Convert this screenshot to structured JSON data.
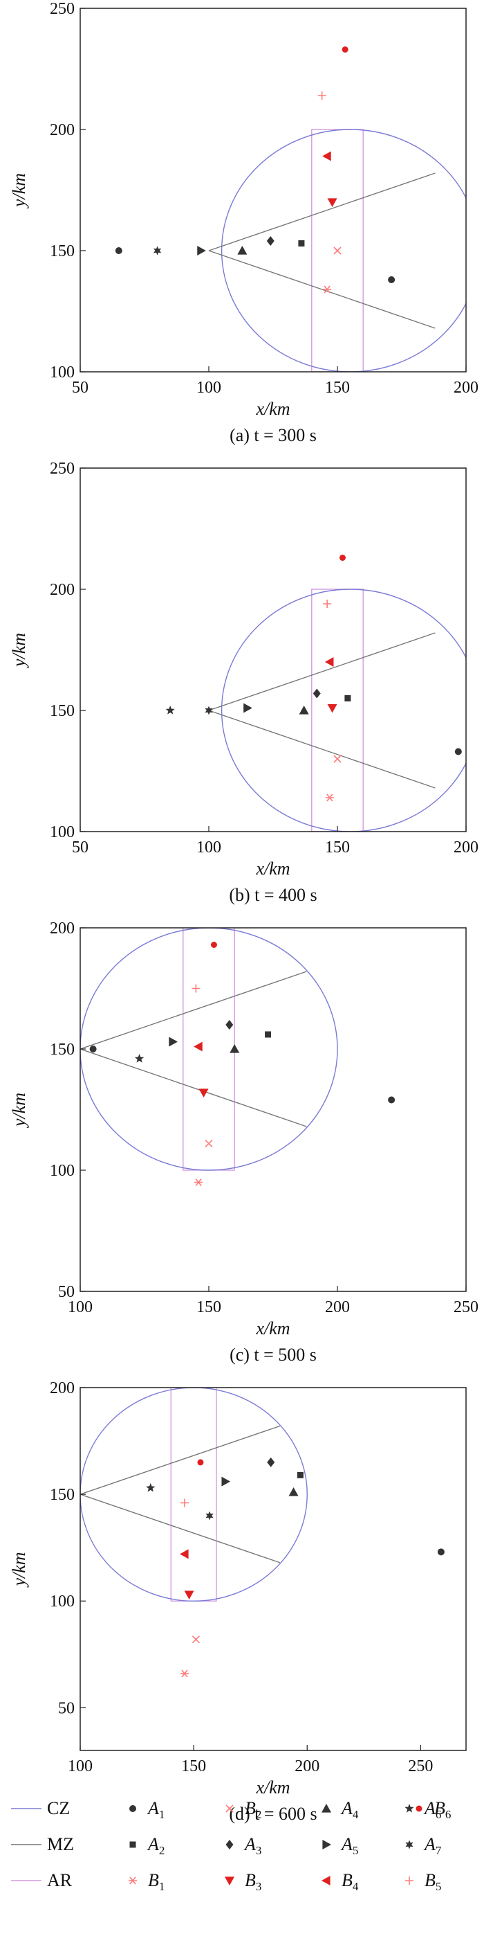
{
  "figure": {
    "legend": [
      {
        "key": "CZ",
        "label": "CZ",
        "sub": "",
        "kind": "line",
        "color": "#7b7bd6"
      },
      {
        "key": "MZ",
        "label": "MZ",
        "sub": "",
        "kind": "line",
        "color": "#777777"
      },
      {
        "key": "AR",
        "label": "AR",
        "sub": "",
        "kind": "line",
        "color": "#d39be0"
      },
      {
        "key": "A1",
        "label": "A",
        "sub": "1",
        "kind": "circle",
        "color": "#333333"
      },
      {
        "key": "A2",
        "label": "A",
        "sub": "2",
        "kind": "square",
        "color": "#333333"
      },
      {
        "key": "B1",
        "label": "B",
        "sub": "1",
        "kind": "asterisk",
        "color": "#ff7b7b"
      },
      {
        "key": "B2",
        "label": "B",
        "sub": "2",
        "kind": "cross",
        "color": "#ff7b7b"
      },
      {
        "key": "A3",
        "label": "A",
        "sub": "3",
        "kind": "diamond",
        "color": "#333333"
      },
      {
        "key": "B3",
        "label": "B",
        "sub": "3",
        "kind": "tri-down",
        "color": "#e02020"
      },
      {
        "key": "A4",
        "label": "A",
        "sub": "4",
        "kind": "tri-up",
        "color": "#333333"
      },
      {
        "key": "A5",
        "label": "A",
        "sub": "5",
        "kind": "tri-right",
        "color": "#333333"
      },
      {
        "key": "B4",
        "label": "B",
        "sub": "4",
        "kind": "tri-left",
        "color": "#e02020"
      },
      {
        "key": "A6",
        "label": "A",
        "sub": "6",
        "kind": "star",
        "color": "#333333"
      },
      {
        "key": "A7",
        "label": "A",
        "sub": "7",
        "kind": "hexagram",
        "color": "#333333"
      },
      {
        "key": "B5",
        "label": "B",
        "sub": "5",
        "kind": "plus",
        "color": "#ff7b7b"
      },
      {
        "key": "B6",
        "label": "B",
        "sub": "6",
        "kind": "dot",
        "color": "#e02020"
      }
    ]
  },
  "chart_data": [
    {
      "type": "scatter",
      "caption": "(a)  t = 300 s",
      "xlabel": "x/km",
      "ylabel": "y/km",
      "xlim": [
        50,
        200
      ],
      "ylim": [
        100,
        250
      ],
      "xticks": [
        50,
        100,
        150,
        200
      ],
      "yticks": [
        100,
        150,
        200,
        250
      ],
      "cz": {
        "cx": 155,
        "cy": 150,
        "r": 50
      },
      "mz": {
        "apex": [
          100,
          150
        ],
        "ends": [
          [
            188,
            182
          ],
          [
            188,
            118
          ]
        ]
      },
      "ar": {
        "x0": 140,
        "x1": 160,
        "y0": 100,
        "y1": 200
      },
      "points": [
        {
          "key": "A1",
          "x": 65,
          "y": 150
        },
        {
          "key": "A1",
          "x": 171,
          "y": 138
        },
        {
          "key": "A7",
          "x": 80,
          "y": 150
        },
        {
          "key": "A5",
          "x": 97,
          "y": 150
        },
        {
          "key": "A4",
          "x": 113,
          "y": 150
        },
        {
          "key": "A3",
          "x": 124,
          "y": 154
        },
        {
          "key": "A2",
          "x": 136,
          "y": 153
        },
        {
          "key": "B6",
          "x": 153,
          "y": 233
        },
        {
          "key": "B5",
          "x": 144,
          "y": 214
        },
        {
          "key": "B4",
          "x": 146,
          "y": 189
        },
        {
          "key": "B3",
          "x": 148,
          "y": 170
        },
        {
          "key": "B2",
          "x": 150,
          "y": 150
        },
        {
          "key": "B1",
          "x": 146,
          "y": 134
        }
      ]
    },
    {
      "type": "scatter",
      "caption": "(b)  t = 400 s",
      "xlabel": "x/km",
      "ylabel": "y/km",
      "xlim": [
        50,
        200
      ],
      "ylim": [
        100,
        250
      ],
      "xticks": [
        50,
        100,
        150,
        200
      ],
      "yticks": [
        100,
        150,
        200,
        250
      ],
      "cz": {
        "cx": 155,
        "cy": 150,
        "r": 50
      },
      "mz": {
        "apex": [
          100,
          150
        ],
        "ends": [
          [
            188,
            182
          ],
          [
            188,
            118
          ]
        ]
      },
      "ar": {
        "x0": 140,
        "x1": 160,
        "y0": 100,
        "y1": 200
      },
      "points": [
        {
          "key": "A6",
          "x": 85,
          "y": 150
        },
        {
          "key": "A7",
          "x": 100,
          "y": 150
        },
        {
          "key": "A5",
          "x": 115,
          "y": 151
        },
        {
          "key": "A4",
          "x": 137,
          "y": 150
        },
        {
          "key": "A3",
          "x": 142,
          "y": 157
        },
        {
          "key": "A2",
          "x": 154,
          "y": 155
        },
        {
          "key": "A1",
          "x": 197,
          "y": 133
        },
        {
          "key": "B6",
          "x": 152,
          "y": 213
        },
        {
          "key": "B5",
          "x": 146,
          "y": 194
        },
        {
          "key": "B4",
          "x": 147,
          "y": 170
        },
        {
          "key": "B3",
          "x": 148,
          "y": 151
        },
        {
          "key": "B2",
          "x": 150,
          "y": 130
        },
        {
          "key": "B1",
          "x": 147,
          "y": 114
        }
      ]
    },
    {
      "type": "scatter",
      "caption": "(c)  t = 500 s",
      "xlabel": "x/km",
      "ylabel": "y/km",
      "xlim": [
        100,
        250
      ],
      "ylim": [
        50,
        200
      ],
      "xticks": [
        100,
        150,
        200,
        250
      ],
      "yticks": [
        50,
        100,
        150,
        200
      ],
      "cz": {
        "cx": 150,
        "cy": 150,
        "r": 50
      },
      "mz": {
        "apex": [
          100,
          150
        ],
        "ends": [
          [
            188,
            182
          ],
          [
            188,
            118
          ]
        ]
      },
      "ar": {
        "x0": 140,
        "x1": 160,
        "y0": 100,
        "y1": 200
      },
      "points": [
        {
          "key": "A1",
          "x": 105,
          "y": 150
        },
        {
          "key": "A1",
          "x": 221,
          "y": 129
        },
        {
          "key": "A6",
          "x": 123,
          "y": 146
        },
        {
          "key": "A5",
          "x": 136,
          "y": 153
        },
        {
          "key": "A3",
          "x": 158,
          "y": 160
        },
        {
          "key": "A4",
          "x": 160,
          "y": 150
        },
        {
          "key": "A2",
          "x": 173,
          "y": 156
        },
        {
          "key": "B6",
          "x": 152,
          "y": 193
        },
        {
          "key": "B5",
          "x": 145,
          "y": 175
        },
        {
          "key": "B4",
          "x": 146,
          "y": 151
        },
        {
          "key": "B3",
          "x": 148,
          "y": 132
        },
        {
          "key": "B2",
          "x": 150,
          "y": 111
        },
        {
          "key": "B1",
          "x": 146,
          "y": 95
        }
      ]
    },
    {
      "type": "scatter",
      "caption": "(d)  t = 600 s",
      "xlabel": "x/km",
      "ylabel": "y/km",
      "xlim": [
        100,
        270
      ],
      "ylim": [
        30,
        200
      ],
      "xticks": [
        100,
        150,
        200,
        250
      ],
      "yticks": [
        50,
        100,
        150,
        200
      ],
      "cz": {
        "cx": 150,
        "cy": 150,
        "r": 50
      },
      "mz": {
        "apex": [
          100,
          150
        ],
        "ends": [
          [
            188,
            182
          ],
          [
            188,
            118
          ]
        ]
      },
      "ar": {
        "x0": 140,
        "x1": 160,
        "y0": 100,
        "y1": 200
      },
      "points": [
        {
          "key": "A6",
          "x": 131,
          "y": 153
        },
        {
          "key": "A7",
          "x": 157,
          "y": 140
        },
        {
          "key": "A5",
          "x": 164,
          "y": 156
        },
        {
          "key": "A3",
          "x": 184,
          "y": 165
        },
        {
          "key": "A4",
          "x": 194,
          "y": 151
        },
        {
          "key": "A2",
          "x": 197,
          "y": 159
        },
        {
          "key": "A1",
          "x": 259,
          "y": 123
        },
        {
          "key": "B6",
          "x": 153,
          "y": 165
        },
        {
          "key": "B5",
          "x": 146,
          "y": 146
        },
        {
          "key": "B4",
          "x": 146,
          "y": 122
        },
        {
          "key": "B3",
          "x": 148,
          "y": 103
        },
        {
          "key": "B2",
          "x": 151,
          "y": 82
        },
        {
          "key": "B1",
          "x": 146,
          "y": 66
        }
      ]
    }
  ]
}
